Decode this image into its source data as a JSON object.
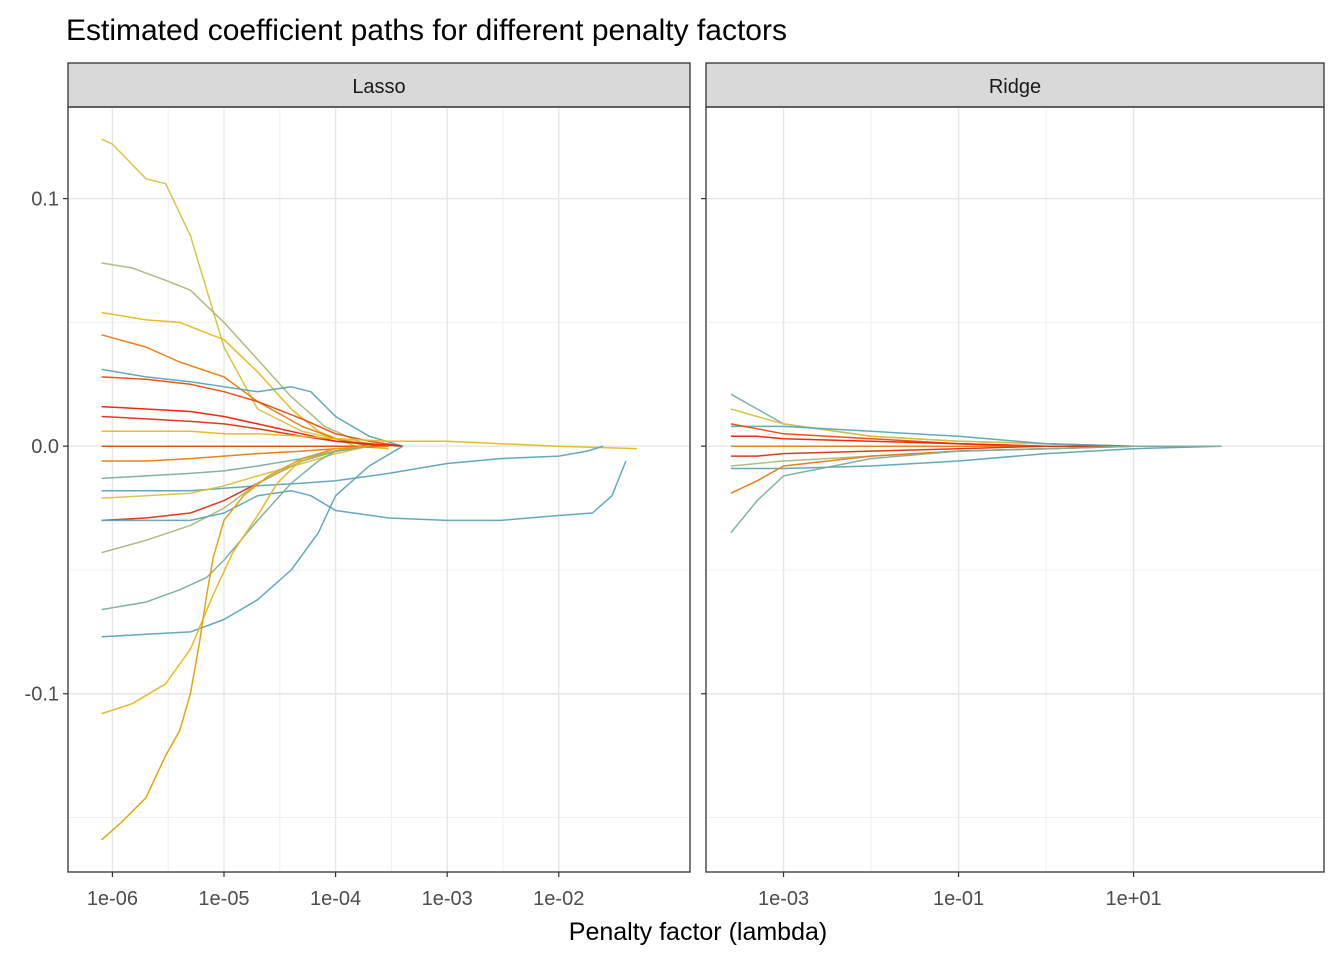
{
  "chart_data": {
    "type": "line",
    "title": "Estimated coefficient paths for different penalty factors",
    "xlabel": "Penalty factor (lambda)",
    "ylabel": "",
    "x_scale": "log10",
    "grid": true,
    "legend": "none",
    "y_ticks": [
      "0.1",
      "0.0",
      "-0.1"
    ],
    "palette": [
      "#5BA4B7",
      "#7BAE9E",
      "#A7B97F",
      "#D7C23F",
      "#E8B81A",
      "#E0A000",
      "#E87A10",
      "#E84B0A",
      "#D93212",
      "#F01E00"
    ],
    "panels": [
      {
        "name": "Lasso",
        "xlim": [
          4e-07,
          0.15
        ],
        "ylim": [
          -0.172,
          0.137
        ],
        "x_ticks": [
          "1e-06",
          "1e-05",
          "1e-04",
          "1e-03",
          "1e-02"
        ],
        "series": [
          {
            "color": "#D7C23F",
            "x": [
              8e-07,
              1e-06,
              2e-06,
              3e-06,
              5e-06,
              1e-05,
              2e-05,
              5e-05,
              0.0001,
              0.0003
            ],
            "values": [
              0.124,
              0.122,
              0.108,
              0.106,
              0.085,
              0.04,
              0.015,
              0.006,
              0.003,
              0.0
            ]
          },
          {
            "color": "#A7B97F",
            "x": [
              8e-07,
              1.5e-06,
              3e-06,
              5e-06,
              1e-05,
              2e-05,
              4e-05,
              8e-05,
              0.0002
            ],
            "values": [
              0.074,
              0.072,
              0.067,
              0.063,
              0.05,
              0.035,
              0.02,
              0.008,
              0.0
            ]
          },
          {
            "color": "#E8B81A",
            "x": [
              8e-07,
              2e-06,
              4e-06,
              1e-05,
              2e-05,
              4e-05,
              7e-05,
              0.00015,
              0.0003
            ],
            "values": [
              0.054,
              0.051,
              0.05,
              0.043,
              0.03,
              0.015,
              0.006,
              0.0,
              -0.001
            ]
          },
          {
            "color": "#E87A10",
            "x": [
              8e-07,
              2e-06,
              4e-06,
              1e-05,
              2e-05,
              5e-05,
              0.0001,
              0.0002
            ],
            "values": [
              0.045,
              0.04,
              0.034,
              0.028,
              0.018,
              0.008,
              0.003,
              0.0
            ]
          },
          {
            "color": "#5BA4B7",
            "x": [
              8e-07,
              2e-06,
              5e-06,
              1e-05,
              2e-05,
              4e-05,
              6e-05,
              0.0001,
              0.0002,
              0.0004
            ],
            "values": [
              0.031,
              0.028,
              0.026,
              0.024,
              0.022,
              0.024,
              0.022,
              0.012,
              0.004,
              0.0
            ]
          },
          {
            "color": "#E84B0A",
            "x": [
              8e-07,
              2e-06,
              5e-06,
              1e-05,
              2e-05,
              5e-05,
              0.0001,
              0.0002,
              0.0004
            ],
            "values": [
              0.028,
              0.027,
              0.025,
              0.022,
              0.018,
              0.011,
              0.005,
              0.002,
              0.0
            ]
          },
          {
            "color": "#F01E00",
            "x": [
              8e-07,
              2e-06,
              5e-06,
              1e-05,
              2e-05,
              5e-05,
              0.0001,
              0.0002,
              0.0004
            ],
            "values": [
              0.016,
              0.015,
              0.014,
              0.012,
              0.009,
              0.005,
              0.002,
              0.001,
              0.0
            ]
          },
          {
            "color": "#D93212",
            "x": [
              8e-07,
              2e-06,
              5e-06,
              1e-05,
              2e-05,
              5e-05,
              0.0001,
              0.0003
            ],
            "values": [
              0.012,
              0.011,
              0.01,
              0.009,
              0.007,
              0.004,
              0.002,
              0.0
            ]
          },
          {
            "color": "#E8B81A",
            "x": [
              8e-07,
              2e-06,
              5e-06,
              1e-05,
              2e-05,
              5e-05,
              0.0001,
              0.0003,
              0.001,
              0.003,
              0.01,
              0.05
            ],
            "values": [
              0.006,
              0.006,
              0.006,
              0.005,
              0.005,
              0.004,
              0.003,
              0.002,
              0.002,
              0.001,
              0.0,
              -0.001
            ]
          },
          {
            "color": "#E84B0A",
            "x": [
              8e-07,
              2e-06,
              5e-06,
              1e-05,
              2e-05,
              5e-05,
              0.0001,
              0.0003
            ],
            "values": [
              0.0,
              0.0,
              0.0,
              0.0,
              0.0,
              0.0,
              0.0,
              0.0
            ]
          },
          {
            "color": "#E87A10",
            "x": [
              8e-07,
              2e-06,
              5e-06,
              1e-05,
              2e-05,
              5e-05,
              0.0001,
              0.0003
            ],
            "values": [
              -0.006,
              -0.006,
              -0.005,
              -0.004,
              -0.003,
              -0.002,
              -0.001,
              0.0
            ]
          },
          {
            "color": "#7BAE9E",
            "x": [
              8e-07,
              2e-06,
              5e-06,
              1e-05,
              2e-05,
              5e-05,
              0.0001,
              0.0002
            ],
            "values": [
              -0.013,
              -0.012,
              -0.011,
              -0.01,
              -0.008,
              -0.005,
              -0.002,
              0.0
            ]
          },
          {
            "color": "#5BA4B7",
            "x": [
              8e-07,
              2e-06,
              5e-06,
              1e-05,
              2e-05,
              5e-05,
              0.0001,
              0.0003,
              0.001,
              0.003,
              0.01,
              0.018,
              0.025
            ],
            "values": [
              -0.018,
              -0.018,
              -0.018,
              -0.017,
              -0.016,
              -0.015,
              -0.014,
              -0.011,
              -0.007,
              -0.005,
              -0.004,
              -0.002,
              0.0
            ]
          },
          {
            "color": "#D7C23F",
            "x": [
              8e-07,
              2e-06,
              5e-06,
              1e-05,
              2e-05,
              5e-05,
              0.0001,
              0.0002
            ],
            "values": [
              -0.021,
              -0.02,
              -0.019,
              -0.016,
              -0.012,
              -0.007,
              -0.003,
              0.0
            ]
          },
          {
            "color": "#D93212",
            "x": [
              8e-07,
              2e-06,
              5e-06,
              1e-05,
              2e-05,
              5e-05,
              0.0001,
              0.0002
            ],
            "values": [
              -0.03,
              -0.029,
              -0.027,
              -0.022,
              -0.015,
              -0.006,
              -0.002,
              0.0
            ]
          },
          {
            "color": "#A7B97F",
            "x": [
              8e-07,
              2e-06,
              5e-06,
              1e-05,
              2e-05,
              5e-05,
              0.0001,
              0.0002
            ],
            "values": [
              -0.043,
              -0.038,
              -0.032,
              -0.025,
              -0.015,
              -0.006,
              -0.002,
              0.0
            ]
          },
          {
            "color": "#5BA4B7",
            "x": [
              8e-07,
              2e-06,
              5e-06,
              1e-05,
              2e-05,
              4e-05,
              6e-05,
              0.0001,
              0.0003,
              0.001,
              0.003,
              0.01,
              0.02,
              0.03,
              0.04
            ],
            "values": [
              -0.03,
              -0.03,
              -0.03,
              -0.027,
              -0.02,
              -0.018,
              -0.02,
              -0.026,
              -0.029,
              -0.03,
              -0.03,
              -0.028,
              -0.027,
              -0.02,
              -0.006
            ]
          },
          {
            "color": "#7BAE9E",
            "x": [
              8e-07,
              2e-06,
              4e-06,
              7e-06,
              1e-05,
              2e-05,
              4e-05,
              7e-05,
              0.0001,
              0.0002
            ],
            "values": [
              -0.066,
              -0.063,
              -0.058,
              -0.053,
              -0.046,
              -0.03,
              -0.015,
              -0.006,
              -0.002,
              0.0
            ]
          },
          {
            "color": "#5BA4B7",
            "x": [
              8e-07,
              2e-06,
              5e-06,
              1e-05,
              2e-05,
              4e-05,
              7e-05,
              0.0001,
              0.0002,
              0.0004
            ],
            "values": [
              -0.077,
              -0.076,
              -0.075,
              -0.07,
              -0.062,
              -0.05,
              -0.035,
              -0.02,
              -0.008,
              0.0
            ]
          },
          {
            "color": "#E8B81A",
            "x": [
              8e-07,
              1.5e-06,
              3e-06,
              5e-06,
              8e-06,
              1.2e-05,
              2e-05,
              3e-05,
              5e-05,
              0.0001,
              0.0002
            ],
            "values": [
              -0.108,
              -0.104,
              -0.096,
              -0.082,
              -0.06,
              -0.043,
              -0.028,
              -0.015,
              -0.005,
              -0.001,
              0.0
            ]
          },
          {
            "color": "#E0A000",
            "x": [
              8e-07,
              1.2e-06,
              2e-06,
              3e-06,
              4e-06,
              5e-06,
              6e-06,
              7e-06,
              8e-06,
              1e-05,
              1.5e-05,
              2.5e-05,
              5e-05,
              0.0001,
              0.0002
            ],
            "values": [
              -0.159,
              -0.152,
              -0.142,
              -0.125,
              -0.115,
              -0.1,
              -0.08,
              -0.06,
              -0.045,
              -0.03,
              -0.02,
              -0.012,
              -0.005,
              -0.001,
              0.0
            ]
          }
        ]
      },
      {
        "name": "Ridge",
        "xlim": [
          0.00013,
          1500.0
        ],
        "ylim": [
          -0.172,
          0.137
        ],
        "x_ticks": [
          "1e-03",
          "1e-01",
          "1e+01"
        ],
        "series": [
          {
            "color": "#7BAE9E",
            "x": [
              0.00025,
              0.0005,
              0.001,
              0.01,
              0.1,
              1.0,
              10.0,
              100.0
            ],
            "values": [
              0.021,
              0.015,
              0.009,
              0.004,
              0.002,
              0.001,
              0.0,
              0.0
            ]
          },
          {
            "color": "#D7C23F",
            "x": [
              0.00025,
              0.0005,
              0.001,
              0.01,
              0.1,
              1.0,
              10.0,
              100.0
            ],
            "values": [
              0.015,
              0.012,
              0.009,
              0.004,
              0.002,
              0.001,
              0.0,
              0.0
            ]
          },
          {
            "color": "#5BA4B7",
            "x": [
              0.00025,
              0.0005,
              0.001,
              0.01,
              0.1,
              1.0,
              10.0,
              100.0
            ],
            "values": [
              0.008,
              0.008,
              0.008,
              0.006,
              0.004,
              0.001,
              0.0,
              0.0
            ]
          },
          {
            "color": "#E84B0A",
            "x": [
              0.00025,
              0.0005,
              0.001,
              0.01,
              0.1,
              1.0,
              10.0,
              100.0
            ],
            "values": [
              0.009,
              0.007,
              0.005,
              0.003,
              0.001,
              0.0,
              0.0,
              0.0
            ]
          },
          {
            "color": "#F01E00",
            "x": [
              0.00025,
              0.0005,
              0.001,
              0.01,
              0.1,
              1.0,
              10.0,
              100.0
            ],
            "values": [
              0.004,
              0.004,
              0.003,
              0.002,
              0.001,
              0.0,
              0.0,
              0.0
            ]
          },
          {
            "color": "#E87A10",
            "x": [
              0.00025,
              0.0005,
              0.001,
              0.01,
              0.1,
              1.0,
              10.0,
              100.0
            ],
            "values": [
              0.0,
              0.0,
              0.0,
              0.0,
              0.0,
              0.0,
              0.0,
              0.0
            ]
          },
          {
            "color": "#D93212",
            "x": [
              0.00025,
              0.0005,
              0.001,
              0.01,
              0.1,
              1.0,
              10.0,
              100.0
            ],
            "values": [
              -0.004,
              -0.004,
              -0.003,
              -0.002,
              -0.001,
              0.0,
              0.0,
              0.0
            ]
          },
          {
            "color": "#A7B97F",
            "x": [
              0.00025,
              0.0005,
              0.001,
              0.01,
              0.1,
              1.0,
              10.0,
              100.0
            ],
            "values": [
              -0.008,
              -0.007,
              -0.006,
              -0.004,
              -0.002,
              -0.001,
              0.0,
              0.0
            ]
          },
          {
            "color": "#5BA4B7",
            "x": [
              0.00025,
              0.0005,
              0.001,
              0.01,
              0.1,
              1.0,
              10.0,
              100.0
            ],
            "values": [
              -0.009,
              -0.009,
              -0.009,
              -0.008,
              -0.006,
              -0.003,
              -0.001,
              0.0
            ]
          },
          {
            "color": "#E87A10",
            "x": [
              0.00025,
              0.0005,
              0.001,
              0.01,
              0.1,
              1.0,
              10.0,
              100.0
            ],
            "values": [
              -0.019,
              -0.014,
              -0.008,
              -0.004,
              -0.002,
              -0.001,
              0.0,
              0.0
            ]
          },
          {
            "color": "#7BAE9E",
            "x": [
              0.00025,
              0.0005,
              0.001,
              0.01,
              0.1,
              1.0,
              10.0,
              100.0
            ],
            "values": [
              -0.035,
              -0.022,
              -0.012,
              -0.005,
              -0.002,
              -0.001,
              0.0,
              0.0
            ]
          }
        ]
      }
    ]
  }
}
